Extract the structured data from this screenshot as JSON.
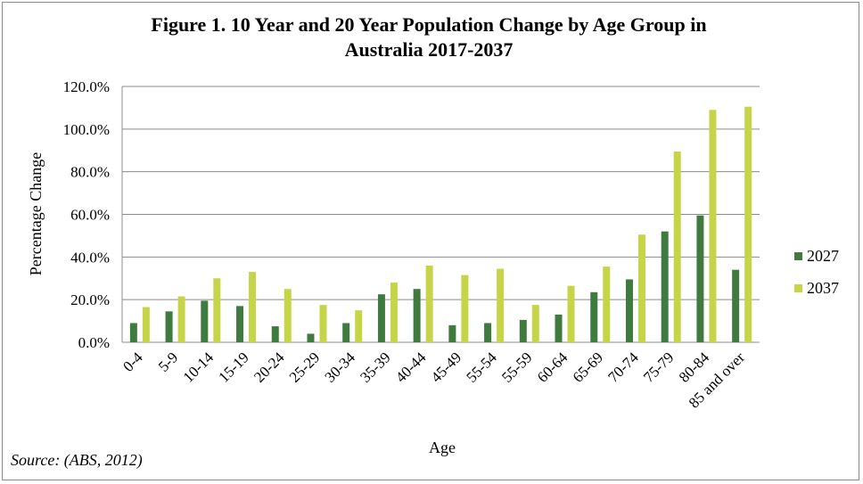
{
  "chart_data": {
    "type": "bar",
    "title_line1": "Figure 1.  10 Year and 20 Year Population Change by Age Group in",
    "title_line2": "Australia 2017-2037",
    "xlabel": "Age",
    "ylabel": "Percentage Change",
    "ylim": [
      0,
      120
    ],
    "yticks": [
      "0.0%",
      "20.0%",
      "40.0%",
      "60.0%",
      "80.0%",
      "100.0%",
      "120.0%"
    ],
    "grid": true,
    "legend_position": "right",
    "categories": [
      "0-4",
      "5-9",
      "10-14",
      "15-19",
      "20-24",
      "25-29",
      "30-34",
      "35-39",
      "40-44",
      "45-49",
      "55-54",
      "55-59",
      "60-64",
      "65-69",
      "70-74",
      "75-79",
      "80-84",
      "85 and over"
    ],
    "series": [
      {
        "name": "2027",
        "color": "#3f7a3e",
        "values": [
          9,
          14.5,
          19.5,
          17,
          7.5,
          4,
          9,
          22.5,
          25,
          8,
          9,
          10.5,
          13,
          23.5,
          29.5,
          52,
          59.5,
          34
        ]
      },
      {
        "name": "2037",
        "color": "#c6d548",
        "values": [
          16.5,
          21.5,
          30,
          33,
          25,
          17.5,
          15,
          28,
          36,
          31.5,
          34.5,
          17.5,
          26.5,
          35.5,
          50.5,
          89.5,
          109,
          110.5
        ]
      }
    ]
  },
  "source": "Source: (ABS, 2012)"
}
